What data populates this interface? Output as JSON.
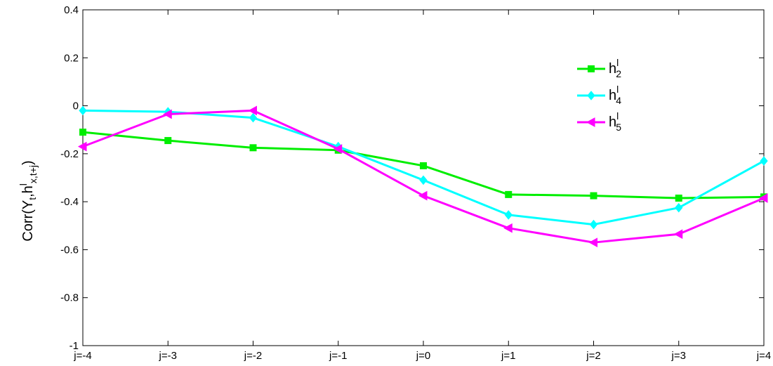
{
  "chart_data": {
    "type": "line",
    "categories": [
      "j=-4",
      "j=-3",
      "j=-2",
      "j=-1",
      "j=0",
      "j=1",
      "j=2",
      "j=3",
      "j=4"
    ],
    "yticks": [
      "-1",
      "-0.8",
      "-0.6",
      "-0.4",
      "-0.2",
      "0",
      "0.2",
      "0.4"
    ],
    "ylim": [
      -1,
      0.4
    ],
    "ylabel": {
      "prefix": "Corr(Y",
      "sub1": "t",
      "mid": ",h",
      "sup": "l",
      "sub2": "x,t+j",
      "suffix": ")"
    },
    "legend_position": "top-right",
    "grid": false,
    "series": [
      {
        "name": {
          "base": "h",
          "sup": "l",
          "sub": "2"
        },
        "color": "#00ee00",
        "marker": "square",
        "values": [
          -0.11,
          -0.145,
          -0.175,
          -0.185,
          -0.25,
          -0.37,
          -0.375,
          -0.385,
          -0.38
        ]
      },
      {
        "name": {
          "base": "h",
          "sup": "l",
          "sub": "4"
        },
        "color": "#00ffff",
        "marker": "diamond",
        "values": [
          -0.02,
          -0.025,
          -0.05,
          -0.17,
          -0.31,
          -0.455,
          -0.495,
          -0.425,
          -0.23
        ]
      },
      {
        "name": {
          "base": "h",
          "sup": "l",
          "sub": "5"
        },
        "color": "#ff00ff",
        "marker": "triangle-left",
        "values": [
          -0.17,
          -0.035,
          -0.02,
          -0.18,
          -0.375,
          -0.51,
          -0.57,
          -0.535,
          -0.385
        ]
      }
    ]
  }
}
